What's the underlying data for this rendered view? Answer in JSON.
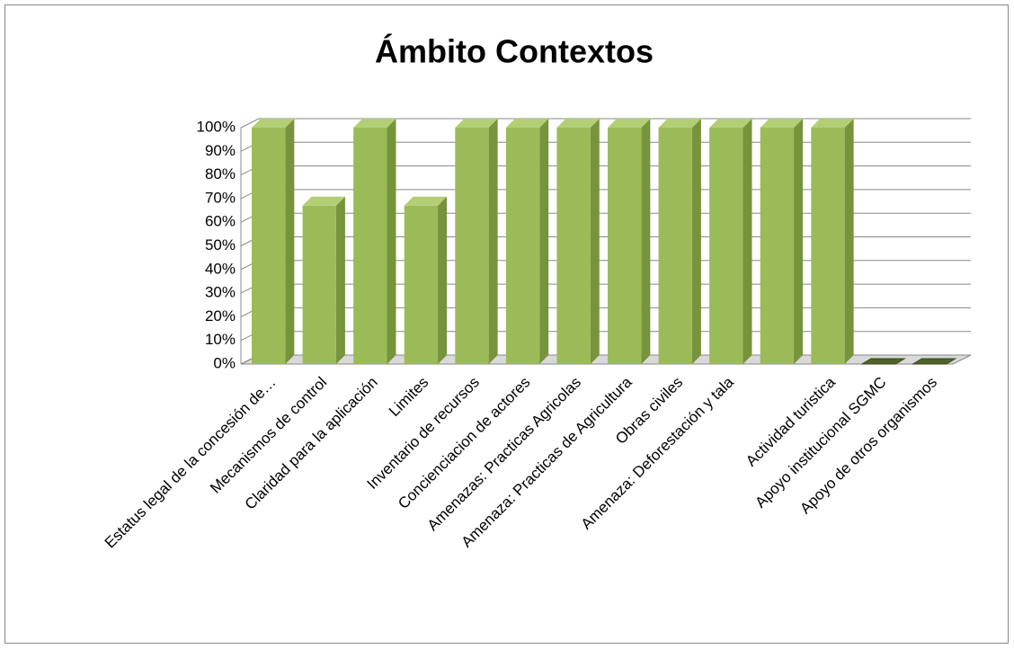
{
  "chart_data": {
    "type": "bar3d",
    "title": "Ámbito Contextos",
    "categories": [
      "Estatus legal de la concesión de…",
      "Mecanismos de control",
      "Claridad para la aplicación",
      "Limites",
      "Inventario de recursos",
      "Concienciacion de actores",
      "Amenazas: Practicas Agricolas",
      "Amenaza: Practicas de Agricultura",
      "Obras civiles",
      "Amenaza: Deforestación y tala",
      null,
      "Actividad turistica",
      "Apoyo institucional SGMC",
      "Apoyo de otros organismos"
    ],
    "values": [
      100,
      67,
      100,
      67,
      100,
      100,
      100,
      100,
      100,
      100,
      100,
      100,
      0,
      0
    ],
    "color": "#9bbb59",
    "ylim": [
      0,
      100
    ],
    "yticks": [
      {
        "value": 0,
        "label": "0%"
      },
      {
        "value": 10,
        "label": "10%"
      },
      {
        "value": 20,
        "label": "20%"
      },
      {
        "value": 30,
        "label": "30%"
      },
      {
        "value": 40,
        "label": "40%"
      },
      {
        "value": 50,
        "label": "50%"
      },
      {
        "value": 60,
        "label": "60%"
      },
      {
        "value": 70,
        "label": "70%"
      },
      {
        "value": 80,
        "label": "80%"
      },
      {
        "value": 90,
        "label": "90%"
      },
      {
        "value": 100,
        "label": "100%"
      }
    ],
    "grid": true
  }
}
